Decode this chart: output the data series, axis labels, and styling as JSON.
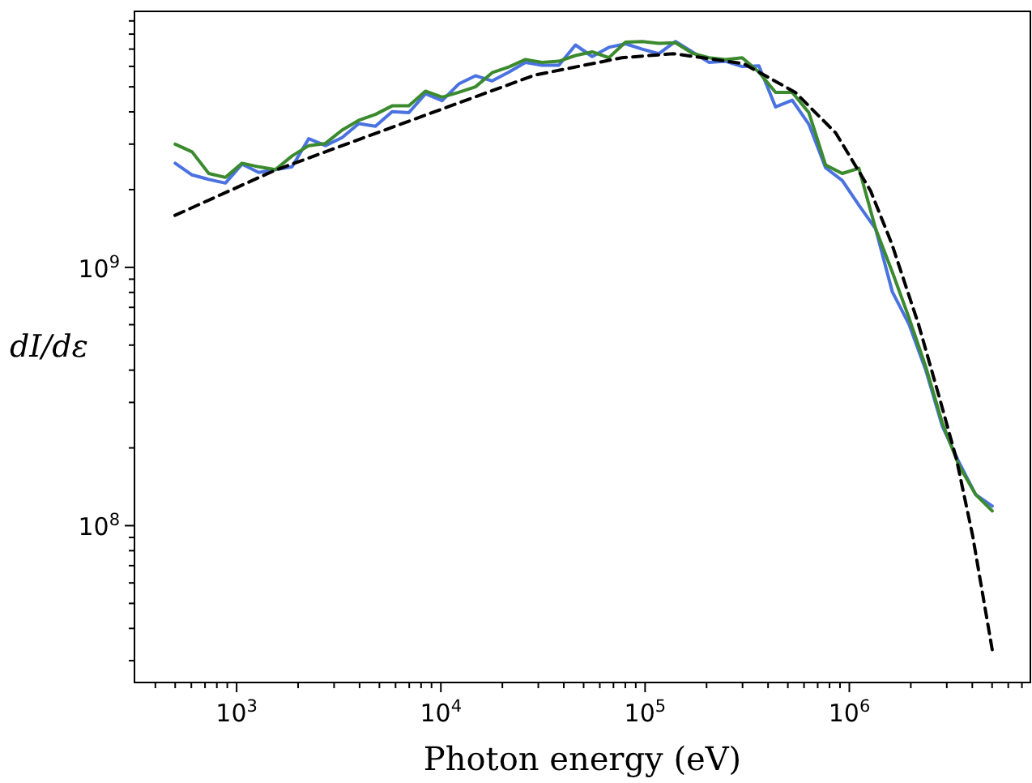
{
  "chart_data": {
    "type": "line",
    "xlabel": "Photon energy (eV)",
    "ylabel": "dI/dε",
    "log": "xy",
    "grid": false,
    "marker": "none",
    "xlim": [
      316,
      7700000
    ],
    "ylim": [
      24700000,
      9800000000
    ],
    "xticks": [
      {
        "value": 400,
        "label": null
      },
      {
        "value": 500,
        "label": null
      },
      {
        "value": 600,
        "label": null
      },
      {
        "value": 700,
        "label": null
      },
      {
        "value": 800,
        "label": null
      },
      {
        "value": 900,
        "label": null
      },
      {
        "value": 1000,
        "label": "10$^{3}$"
      },
      {
        "value": 2000,
        "label": null
      },
      {
        "value": 3000,
        "label": null
      },
      {
        "value": 4000,
        "label": null
      },
      {
        "value": 5000,
        "label": null
      },
      {
        "value": 6000,
        "label": null
      },
      {
        "value": 7000,
        "label": null
      },
      {
        "value": 8000,
        "label": null
      },
      {
        "value": 9000,
        "label": null
      },
      {
        "value": 10000,
        "label": "10$^{4}$"
      },
      {
        "value": 20000,
        "label": null
      },
      {
        "value": 30000,
        "label": null
      },
      {
        "value": 40000,
        "label": null
      },
      {
        "value": 50000,
        "label": null
      },
      {
        "value": 60000,
        "label": null
      },
      {
        "value": 70000,
        "label": null
      },
      {
        "value": 80000,
        "label": null
      },
      {
        "value": 90000,
        "label": null
      },
      {
        "value": 100000,
        "label": "10$^{5}$"
      },
      {
        "value": 200000,
        "label": null
      },
      {
        "value": 300000,
        "label": null
      },
      {
        "value": 400000,
        "label": null
      },
      {
        "value": 500000,
        "label": null
      },
      {
        "value": 600000,
        "label": null
      },
      {
        "value": 700000,
        "label": null
      },
      {
        "value": 800000,
        "label": null
      },
      {
        "value": 900000,
        "label": null
      },
      {
        "value": 1000000,
        "label": "10$^{6}$"
      },
      {
        "value": 2000000,
        "label": null
      },
      {
        "value": 3000000,
        "label": null
      },
      {
        "value": 4000000,
        "label": null
      },
      {
        "value": 5000000,
        "label": null
      },
      {
        "value": 6000000,
        "label": null
      },
      {
        "value": 7000000,
        "label": null
      }
    ],
    "yticks": [
      {
        "value": 30000000,
        "label": null
      },
      {
        "value": 40000000,
        "label": null
      },
      {
        "value": 50000000,
        "label": null
      },
      {
        "value": 60000000,
        "label": null
      },
      {
        "value": 70000000,
        "label": null
      },
      {
        "value": 80000000,
        "label": null
      },
      {
        "value": 90000000,
        "label": null
      },
      {
        "value": 100000000,
        "label": "10$^{8}$"
      },
      {
        "value": 200000000,
        "label": null
      },
      {
        "value": 300000000,
        "label": null
      },
      {
        "value": 400000000,
        "label": null
      },
      {
        "value": 500000000,
        "label": null
      },
      {
        "value": 600000000,
        "label": null
      },
      {
        "value": 700000000,
        "label": null
      },
      {
        "value": 800000000,
        "label": null
      },
      {
        "value": 900000000,
        "label": null
      },
      {
        "value": 1000000000,
        "label": "10$^{9}$"
      },
      {
        "value": 2000000000,
        "label": null
      },
      {
        "value": 3000000000,
        "label": null
      },
      {
        "value": 4000000000,
        "label": null
      },
      {
        "value": 5000000000,
        "label": null
      },
      {
        "value": 6000000000,
        "label": null
      },
      {
        "value": 7000000000,
        "label": null
      },
      {
        "value": 8000000000,
        "label": null
      },
      {
        "value": 9000000000,
        "label": null
      }
    ],
    "x": [
      500,
      605,
      730,
      881,
      1063,
      1283,
      1548,
      1868,
      2255,
      2721,
      3283,
      3963,
      4782,
      5771,
      6965,
      8405,
      10141,
      12241,
      14770,
      17823,
      21510,
      25955,
      31321,
      37805,
      45618,
      55052,
      66436,
      80189,
      96760,
      116790,
      140930,
      170090,
      205240,
      247750,
      298910,
      360720,
      435390,
      525400,
      633900,
      765100,
      923000,
      1114000,
      1345000,
      1623000,
      1958000,
      2363000,
      2852000,
      3441000,
      4153000,
      5010000
    ],
    "series": [
      {
        "color": "#4a72e0",
        "line_style": "solid",
        "values": [
          2530000000.0,
          2280000000.0,
          2190000000.0,
          2120000000.0,
          2510000000.0,
          2330000000.0,
          2390000000.0,
          2450000000.0,
          3150000000.0,
          2960000000.0,
          3180000000.0,
          3600000000.0,
          3520000000.0,
          4010000000.0,
          3970000000.0,
          4700000000.0,
          4420000000.0,
          5130000000.0,
          5520000000.0,
          5270000000.0,
          5700000000.0,
          6220000000.0,
          6060000000.0,
          6060000000.0,
          7260000000.0,
          6550000000.0,
          7110000000.0,
          7340000000.0,
          7000000000.0,
          6720000000.0,
          7490000000.0,
          6830000000.0,
          6220000000.0,
          6280000000.0,
          5990000000.0,
          6030000000.0,
          4180000000.0,
          4440000000.0,
          3580000000.0,
          2430000000.0,
          2170000000.0,
          1740000000.0,
          1410000000.0,
          805000000.0,
          603000000.0,
          402000000.0,
          243000000.0,
          176000000.0,
          132000000.0,
          119000000.0
        ]
      },
      {
        "color": "#3b8a2e",
        "line_style": "solid",
        "values": [
          3000000000.0,
          2800000000.0,
          2310000000.0,
          2230000000.0,
          2530000000.0,
          2450000000.0,
          2390000000.0,
          2700000000.0,
          2960000000.0,
          3020000000.0,
          3400000000.0,
          3710000000.0,
          3910000000.0,
          4220000000.0,
          4220000000.0,
          4810000000.0,
          4560000000.0,
          4760000000.0,
          5000000000.0,
          5670000000.0,
          5970000000.0,
          6380000000.0,
          6220000000.0,
          6280000000.0,
          6610000000.0,
          6830000000.0,
          6480000000.0,
          7450000000.0,
          7490000000.0,
          7370000000.0,
          7410000000.0,
          6750000000.0,
          6480000000.0,
          6380000000.0,
          6480000000.0,
          5700000000.0,
          4760000000.0,
          4760000000.0,
          3970000000.0,
          2490000000.0,
          2310000000.0,
          2420000000.0,
          1410000000.0,
          960000000.0,
          639000000.0,
          414000000.0,
          250000000.0,
          171000000.0,
          132000000.0,
          114000000.0
        ]
      },
      {
        "color": "#000000",
        "line_style": "dashed",
        "x": [
          499,
          1530,
          4070,
          10800,
          28800,
          76900,
          138000,
          303000,
          544000,
          859000,
          1270000,
          1610000,
          2180000,
          2780000,
          3340000,
          4010000,
          5020000
        ],
        "values": [
          1590000000.0,
          2370000000.0,
          3150000000.0,
          4180000000.0,
          5550000000.0,
          6480000000.0,
          6720000000.0,
          6150000000.0,
          4760000000.0,
          3310000000.0,
          1980000000.0,
          1240000000.0,
          603000000.0,
          307000000.0,
          182000000.0,
          92000000.0,
          32700000.0
        ]
      }
    ]
  }
}
